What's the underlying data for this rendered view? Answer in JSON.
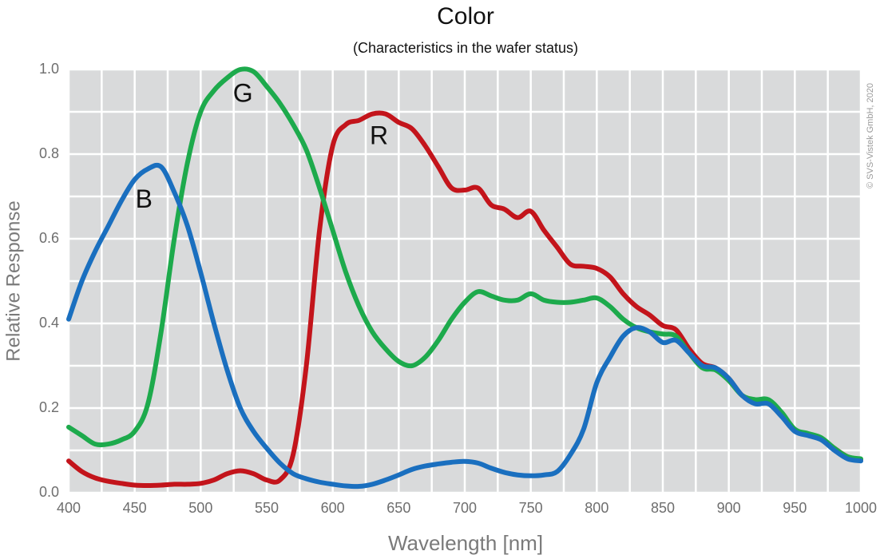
{
  "chart_data": {
    "type": "line",
    "title": "Color",
    "subtitle": "(Characteristics in the wafer status)",
    "x_label": "Wavelength [nm]",
    "y_label": "Relative Response",
    "copyright": "© SVS-Vistek GmbH, 2020",
    "x": [
      400,
      410,
      420,
      430,
      440,
      450,
      460,
      470,
      480,
      490,
      500,
      510,
      520,
      530,
      540,
      550,
      560,
      570,
      580,
      590,
      600,
      610,
      620,
      630,
      640,
      650,
      660,
      670,
      680,
      690,
      700,
      710,
      720,
      730,
      740,
      750,
      760,
      770,
      780,
      790,
      800,
      810,
      820,
      830,
      840,
      850,
      860,
      870,
      880,
      890,
      900,
      910,
      920,
      930,
      940,
      950,
      960,
      970,
      980,
      990,
      1000
    ],
    "series": [
      {
        "name": "R",
        "color": "#c3141b",
        "values": [
          0.075,
          0.05,
          0.035,
          0.027,
          0.022,
          0.018,
          0.017,
          0.018,
          0.02,
          0.02,
          0.022,
          0.03,
          0.045,
          0.052,
          0.045,
          0.03,
          0.03,
          0.09,
          0.3,
          0.62,
          0.82,
          0.87,
          0.88,
          0.895,
          0.895,
          0.875,
          0.86,
          0.82,
          0.77,
          0.72,
          0.715,
          0.72,
          0.68,
          0.67,
          0.65,
          0.665,
          0.62,
          0.58,
          0.54,
          0.535,
          0.53,
          0.51,
          0.47,
          0.44,
          0.42,
          0.395,
          0.385,
          0.34,
          0.305,
          0.295,
          0.27,
          0.23,
          0.215,
          0.215,
          0.185,
          0.148,
          0.138,
          0.128,
          0.105,
          0.085,
          0.078
        ]
      },
      {
        "name": "G",
        "color": "#1daa4c",
        "values": [
          0.155,
          0.135,
          0.115,
          0.115,
          0.125,
          0.145,
          0.21,
          0.38,
          0.6,
          0.78,
          0.9,
          0.95,
          0.98,
          1.0,
          0.995,
          0.96,
          0.92,
          0.87,
          0.81,
          0.72,
          0.62,
          0.52,
          0.44,
          0.38,
          0.34,
          0.31,
          0.3,
          0.32,
          0.36,
          0.41,
          0.45,
          0.475,
          0.465,
          0.455,
          0.455,
          0.47,
          0.455,
          0.45,
          0.45,
          0.455,
          0.46,
          0.44,
          0.41,
          0.39,
          0.38,
          0.375,
          0.37,
          0.33,
          0.295,
          0.29,
          0.265,
          0.23,
          0.22,
          0.22,
          0.19,
          0.15,
          0.14,
          0.13,
          0.105,
          0.085,
          0.08
        ]
      },
      {
        "name": "B",
        "color": "#1a6fbf",
        "values": [
          0.41,
          0.5,
          0.57,
          0.63,
          0.69,
          0.74,
          0.765,
          0.77,
          0.71,
          0.63,
          0.52,
          0.4,
          0.29,
          0.2,
          0.145,
          0.105,
          0.07,
          0.045,
          0.033,
          0.025,
          0.02,
          0.016,
          0.015,
          0.02,
          0.03,
          0.042,
          0.055,
          0.063,
          0.068,
          0.072,
          0.074,
          0.07,
          0.058,
          0.048,
          0.042,
          0.04,
          0.042,
          0.05,
          0.09,
          0.15,
          0.26,
          0.32,
          0.37,
          0.39,
          0.38,
          0.355,
          0.36,
          0.33,
          0.3,
          0.295,
          0.27,
          0.23,
          0.21,
          0.21,
          0.18,
          0.145,
          0.135,
          0.125,
          0.1,
          0.08,
          0.075
        ]
      }
    ],
    "annotations": [
      {
        "text": "B",
        "x": 457,
        "y": 0.69
      },
      {
        "text": "G",
        "x": 532,
        "y": 0.94
      },
      {
        "text": "R",
        "x": 635,
        "y": 0.84
      }
    ],
    "xlim": [
      400,
      1000
    ],
    "ylim": [
      0,
      1
    ],
    "xticks": [
      400,
      450,
      500,
      550,
      600,
      650,
      700,
      750,
      800,
      850,
      900,
      950,
      1000
    ],
    "yticks": [
      {
        "value": 0,
        "label": "0.0"
      },
      {
        "value": 0.2,
        "label": "0.2"
      },
      {
        "value": 0.4,
        "label": "0.4"
      },
      {
        "value": 0.6,
        "label": "0.6"
      },
      {
        "value": 0.8,
        "label": "0.8"
      },
      {
        "value": 1,
        "label": "1.0"
      }
    ],
    "x_minor_grid": [
      425,
      475,
      525,
      575,
      625,
      675,
      725,
      775,
      825,
      875,
      925,
      975
    ],
    "y_minor_grid": [
      0.1,
      0.3,
      0.5,
      0.7,
      0.9
    ],
    "grid": true,
    "background": "#d9dadb"
  }
}
